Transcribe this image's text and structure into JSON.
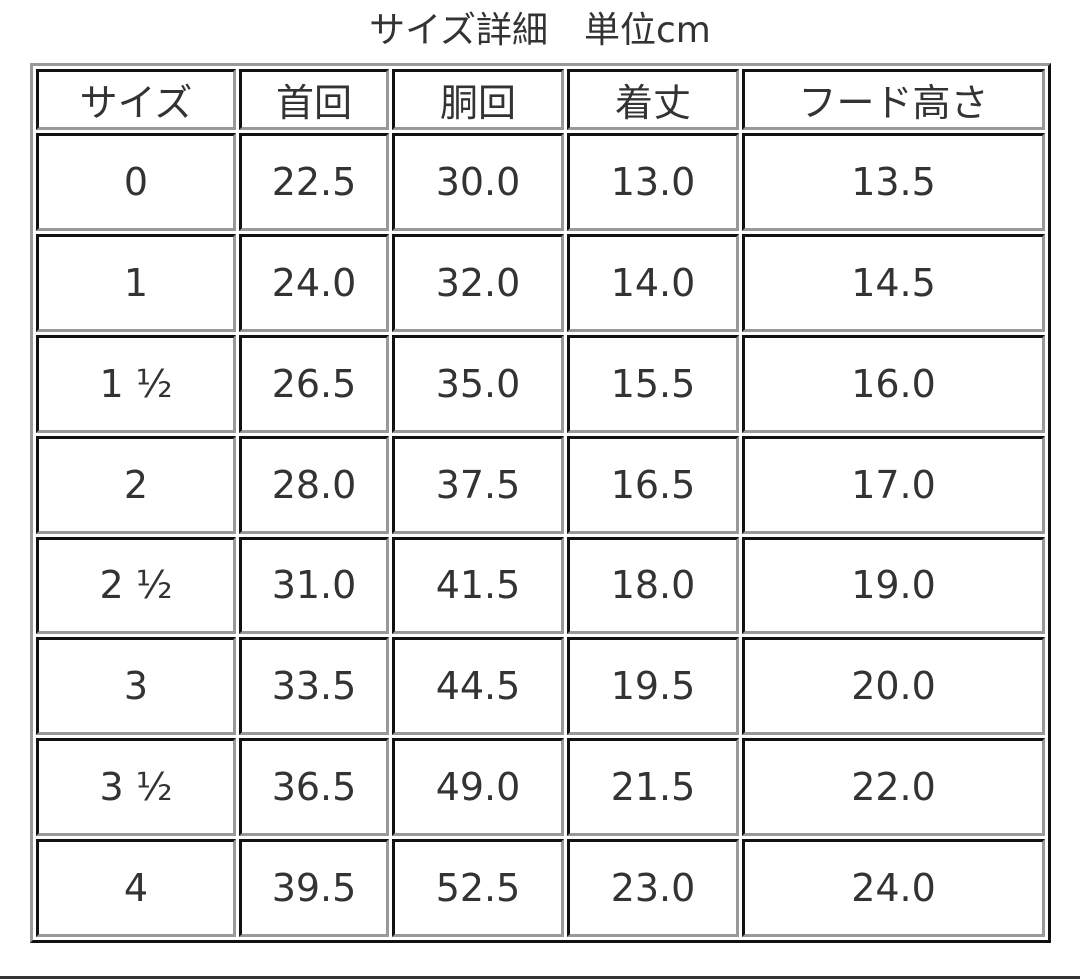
{
  "title": "サイズ詳細　単位cm",
  "table": {
    "headers": [
      "サイズ",
      "首回",
      "胴回",
      "着丈",
      "フード高さ"
    ],
    "rows": [
      [
        "0",
        "22.5",
        "30.0",
        "13.0",
        "13.5"
      ],
      [
        "1",
        "24.0",
        "32.0",
        "14.0",
        "14.5"
      ],
      [
        "1 ½",
        "26.5",
        "35.0",
        "15.5",
        "16.0"
      ],
      [
        "2",
        "28.0",
        "37.5",
        "16.5",
        "17.0"
      ],
      [
        "2 ½",
        "31.0",
        "41.5",
        "18.0",
        "19.0"
      ],
      [
        "3",
        "33.5",
        "44.5",
        "19.5",
        "20.0"
      ],
      [
        "3 ½",
        "36.5",
        "49.0",
        "21.5",
        "22.0"
      ],
      [
        "4",
        "39.5",
        "52.5",
        "23.0",
        "24.0"
      ]
    ]
  }
}
